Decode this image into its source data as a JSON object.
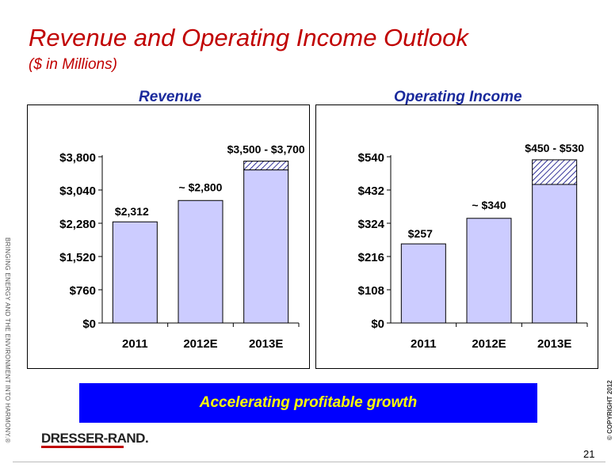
{
  "slide": {
    "title": "Revenue and Operating Income Outlook",
    "subtitle": "($ in Millions)",
    "side_text": "BRINGING ENERGY AND THE ENVIRONMENT INTO HARMONY.®",
    "copyright": "© COPYRIGHT 2012",
    "banner": "Accelerating profitable growth",
    "logo": "DRESSER-RAND.",
    "page_number": "21"
  },
  "colors": {
    "bar_fill": "#ccccff",
    "accent_red": "#c00000",
    "title_blue": "#1a2a9c",
    "banner_bg": "#0000ff",
    "banner_text": "#ffff00"
  },
  "chart_data": [
    {
      "type": "bar",
      "title": "Revenue",
      "categories": [
        "2011",
        "2012E",
        "2013E"
      ],
      "values": [
        2312,
        2800,
        3500
      ],
      "range_high": [
        null,
        null,
        3700
      ],
      "data_labels": [
        "$2,312",
        "~ $2,800",
        "$3,500 - $3,700"
      ],
      "yticks": [
        "$0",
        "$760",
        "$1,520",
        "$2,280",
        "$3,040",
        "$3,800"
      ],
      "ylim": [
        0,
        3800
      ]
    },
    {
      "type": "bar",
      "title": "Operating Income",
      "categories": [
        "2011",
        "2012E",
        "2013E"
      ],
      "values": [
        257,
        340,
        450
      ],
      "range_high": [
        null,
        null,
        530
      ],
      "data_labels": [
        "$257",
        "~ $340",
        "$450 - $530"
      ],
      "yticks": [
        "$0",
        "$108",
        "$216",
        "$324",
        "$432",
        "$540"
      ],
      "ylim": [
        0,
        540
      ]
    }
  ]
}
